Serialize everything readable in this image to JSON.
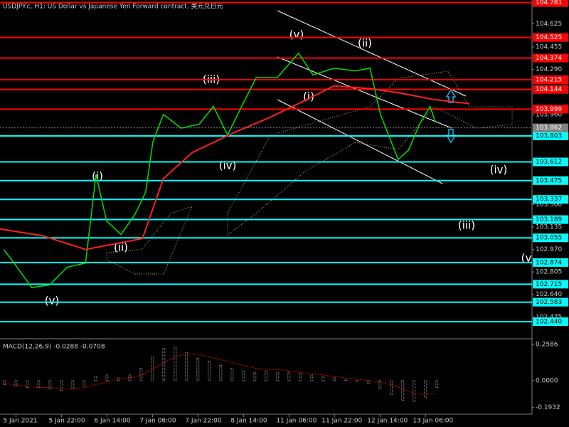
{
  "chart_data": [
    {
      "type": "line",
      "title": "USDJPY.c, H1:  US Dollar vs Japanese Yen Forward contract, 美元兑日元",
      "xlim": [
        -0.35,
        11.34
      ],
      "ylim": [
        102.32,
        104.8
      ],
      "xticks": [
        {
          "value": 0,
          "label": "5 Jan 2021"
        },
        {
          "value": 1,
          "label": "5 Jan 22:00"
        },
        {
          "value": 2,
          "label": "6 Jan 14:00"
        },
        {
          "value": 3,
          "label": "7 Jan 06:00"
        },
        {
          "value": 4,
          "label": "7 Jan 22:00"
        },
        {
          "value": 5,
          "label": "8 Jan 14:00"
        },
        {
          "value": 6,
          "label": "11 Jan 06:00"
        },
        {
          "value": 7,
          "label": "11 Jan 22:00"
        },
        {
          "value": 8,
          "label": "12 Jan 14:00"
        },
        {
          "value": 9,
          "label": "13 Jan 06:00"
        }
      ],
      "yticks": [
        {
          "value": 104.625,
          "label": "104.625"
        },
        {
          "value": 104.455,
          "label": "104.455"
        },
        {
          "value": 104.29,
          "label": "104.290"
        },
        {
          "value": 103.96,
          "label": "103.960"
        },
        {
          "value": 103.3,
          "label": "103.300"
        },
        {
          "value": 103.135,
          "label": "103.135"
        },
        {
          "value": 102.97,
          "label": "102.970"
        },
        {
          "value": 102.805,
          "label": "102.805"
        },
        {
          "value": 102.64,
          "label": "102.640"
        },
        {
          "value": 102.475,
          "label": "102.475"
        }
      ],
      "series": [
        {
          "color": "#00e000",
          "x": [
            -0.27,
            -0.04,
            0.35,
            0.74,
            1.13,
            1.53,
            1.76,
            1.99,
            2.31,
            2.62,
            2.85,
            3.01,
            3.24,
            3.63,
            4.03,
            4.34,
            4.65,
            4.96,
            5.28,
            5.74,
            6.21,
            6.53,
            6.99,
            7.46,
            7.78,
            8.01,
            8.4,
            8.63,
            8.87,
            9.1,
            9.21
          ],
          "values": [
            102.97,
            102.87,
            102.69,
            102.71,
            102.84,
            102.87,
            103.52,
            103.18,
            103.08,
            103.23,
            103.39,
            103.76,
            103.96,
            103.86,
            103.89,
            104.02,
            103.81,
            104.02,
            104.23,
            104.23,
            104.41,
            104.25,
            104.3,
            104.28,
            104.3,
            103.96,
            103.63,
            103.7,
            103.89,
            104.02,
            103.91
          ]
        },
        {
          "color": "#ff2020",
          "x": [
            -0.35,
            0.59,
            1.53,
            2.78,
            3.24,
            3.87,
            4.81,
            5.59,
            6.21,
            6.99,
            7.78,
            8.4,
            9.18,
            9.96
          ],
          "values": [
            103.12,
            103.07,
            102.97,
            103.05,
            103.49,
            103.68,
            103.83,
            103.94,
            104.04,
            104.17,
            104.15,
            104.12,
            104.07,
            104.04
          ]
        }
      ],
      "levels": [
        {
          "value": 104.781,
          "label": "104.781",
          "color": "#ff0000"
        },
        {
          "value": 104.525,
          "label": "104.525",
          "color": "#ff0000"
        },
        {
          "value": 104.374,
          "label": "104.374",
          "color": "#ff0000"
        },
        {
          "value": 104.215,
          "label": "104.215",
          "color": "#ff0000"
        },
        {
          "value": 104.144,
          "label": "104.144",
          "color": "#ff0000"
        },
        {
          "value": 103.999,
          "label": "103.999",
          "color": "#ff0000"
        },
        {
          "value": 103.803,
          "label": "103.803",
          "color": "#00ffff"
        },
        {
          "value": 103.612,
          "label": "103.612",
          "color": "#00ffff"
        },
        {
          "value": 103.475,
          "label": "103.475",
          "color": "#00ffff"
        },
        {
          "value": 103.337,
          "label": "103.337",
          "color": "#00ffff"
        },
        {
          "value": 103.189,
          "label": "103.189",
          "color": "#00ffff"
        },
        {
          "value": 103.055,
          "label": "103.055",
          "color": "#00ffff"
        },
        {
          "value": 102.874,
          "label": "102.874",
          "color": "#00ffff"
        },
        {
          "value": 102.715,
          "label": "102.715",
          "color": "#00ffff"
        },
        {
          "value": 102.583,
          "label": "102.583",
          "color": "#00ffff"
        },
        {
          "value": 102.44,
          "label": "102.440",
          "color": "#00ffff"
        }
      ],
      "current_price": {
        "value": 103.862,
        "label": "103.862"
      },
      "annotations": [
        "(v)",
        "(i)",
        "(ii)",
        "(iii)",
        "(iv)",
        "(v)",
        "(ii)",
        "(i)",
        "(iv)",
        "(iii)",
        "(v"
      ]
    },
    {
      "type": "macd",
      "label": "MACD(12,26,9) -0.0288 -0.0708",
      "ylim": [
        -0.22,
        0.29
      ],
      "yticks": [
        {
          "value": 0.2586,
          "label": "0.2586"
        },
        {
          "value": 0,
          "label": "0.0000"
        },
        {
          "value": -0.1932,
          "label": "-0.1932"
        }
      ],
      "x": [
        -0.25,
        0,
        0.25,
        0.5,
        0.75,
        1,
        1.25,
        1.5,
        1.75,
        2,
        2.25,
        2.5,
        2.75,
        3,
        3.25,
        3.5,
        3.75,
        4,
        4.25,
        4.5,
        4.75,
        5,
        5.25,
        5.5,
        5.75,
        6,
        6.25,
        6.5,
        6.75,
        7,
        7.25,
        7.5,
        7.75,
        8,
        8.25,
        8.5,
        8.75,
        9,
        9.25
      ],
      "histogram": {
        "color": "#c0c0c0",
        "values": [
          -0.03,
          -0.04,
          -0.05,
          -0.05,
          -0.06,
          -0.07,
          -0.06,
          -0.04,
          0.03,
          0.04,
          0.02,
          0.04,
          0.09,
          0.17,
          0.23,
          0.24,
          0.2,
          0.16,
          0.14,
          0.11,
          0.09,
          0.07,
          0.06,
          0.07,
          0.06,
          0.06,
          0.05,
          0.04,
          0.03,
          0.02,
          0.01,
          0,
          -0.02,
          -0.06,
          -0.1,
          -0.14,
          -0.15,
          -0.12,
          -0.05
        ]
      },
      "signal": {
        "color": "#ff0000",
        "values": [
          -0.02,
          -0.03,
          -0.04,
          -0.05,
          -0.05,
          -0.06,
          -0.06,
          -0.05,
          -0.03,
          -0.01,
          0.01,
          0.02,
          0.04,
          0.08,
          0.13,
          0.17,
          0.19,
          0.19,
          0.17,
          0.15,
          0.13,
          0.11,
          0.09,
          0.08,
          0.08,
          0.07,
          0.06,
          0.05,
          0.04,
          0.03,
          0.02,
          0.01,
          0,
          -0.01,
          -0.03,
          -0.06,
          -0.09,
          -0.1,
          -0.09
        ]
      }
    }
  ]
}
